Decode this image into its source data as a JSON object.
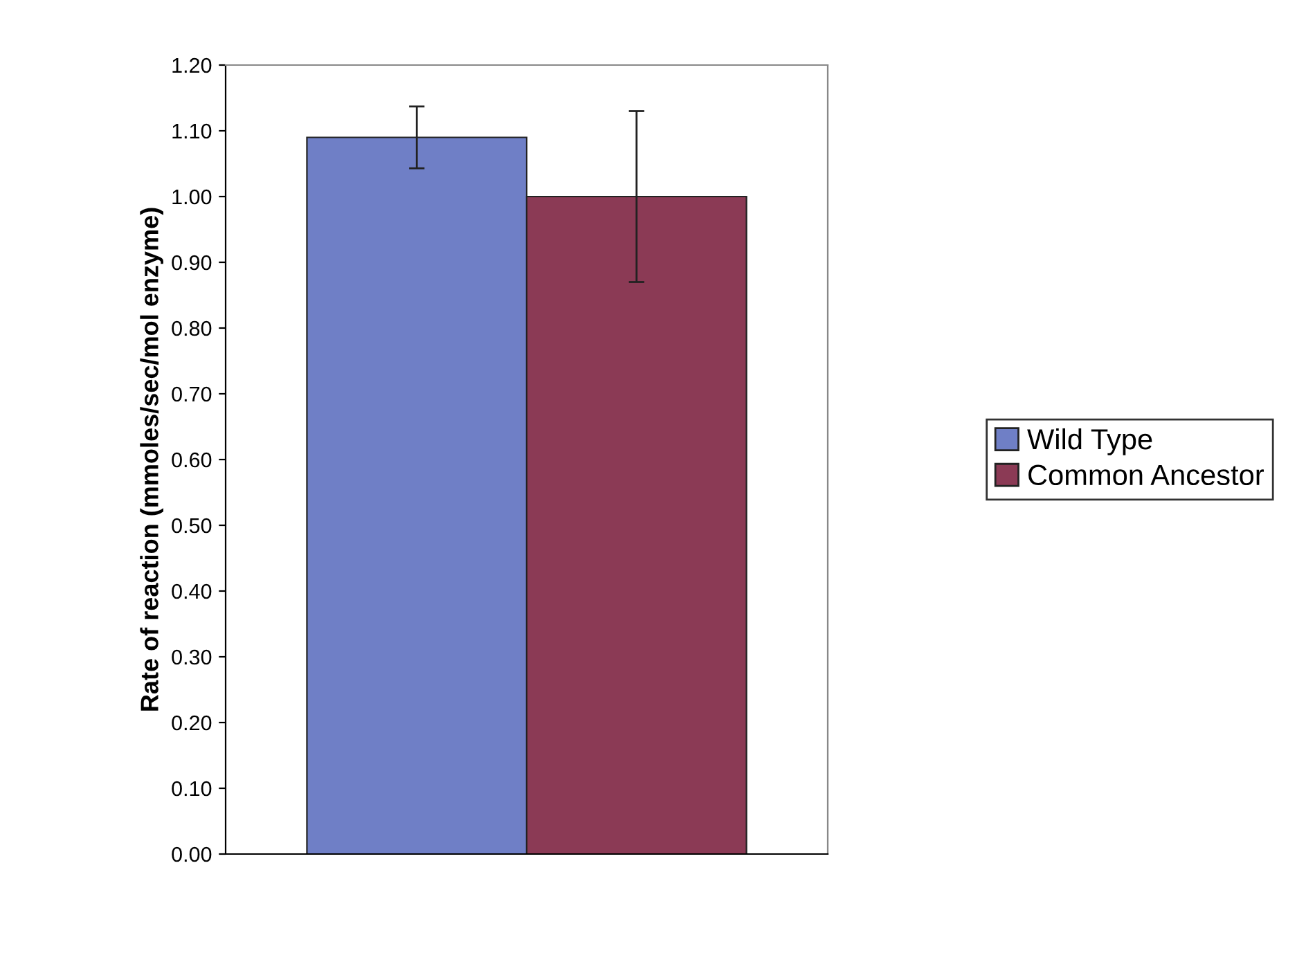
{
  "chart_data": {
    "type": "bar",
    "ylabel": "Rate of reaction (mmoles/sec/mol enzyme)",
    "categories": [
      null
    ],
    "series": [
      {
        "name": "Wild Type",
        "color": "#6f7fc6",
        "values": [
          1.09
        ],
        "errors": [
          0.047
        ]
      },
      {
        "name": "Common Ancestor",
        "color": "#8b3a55",
        "values": [
          1.0
        ],
        "errors": [
          0.13
        ]
      }
    ],
    "ylim": [
      0,
      1.2
    ],
    "yticks": [
      {
        "value": 0,
        "label": "0.00"
      },
      {
        "value": 0.1,
        "label": "0.10"
      },
      {
        "value": 0.2,
        "label": "0.20"
      },
      {
        "value": 0.3,
        "label": "0.30"
      },
      {
        "value": 0.4,
        "label": "0.40"
      },
      {
        "value": 0.5,
        "label": "0.50"
      },
      {
        "value": 0.6,
        "label": "0.60"
      },
      {
        "value": 0.7,
        "label": "0.70"
      },
      {
        "value": 0.8,
        "label": "0.80"
      },
      {
        "value": 0.9,
        "label": "0.90"
      },
      {
        "value": 1.0,
        "label": "1.00"
      },
      {
        "value": 1.1,
        "label": "1.10"
      },
      {
        "value": 1.2,
        "label": "1.20"
      }
    ],
    "grid": false,
    "legend": "right"
  }
}
